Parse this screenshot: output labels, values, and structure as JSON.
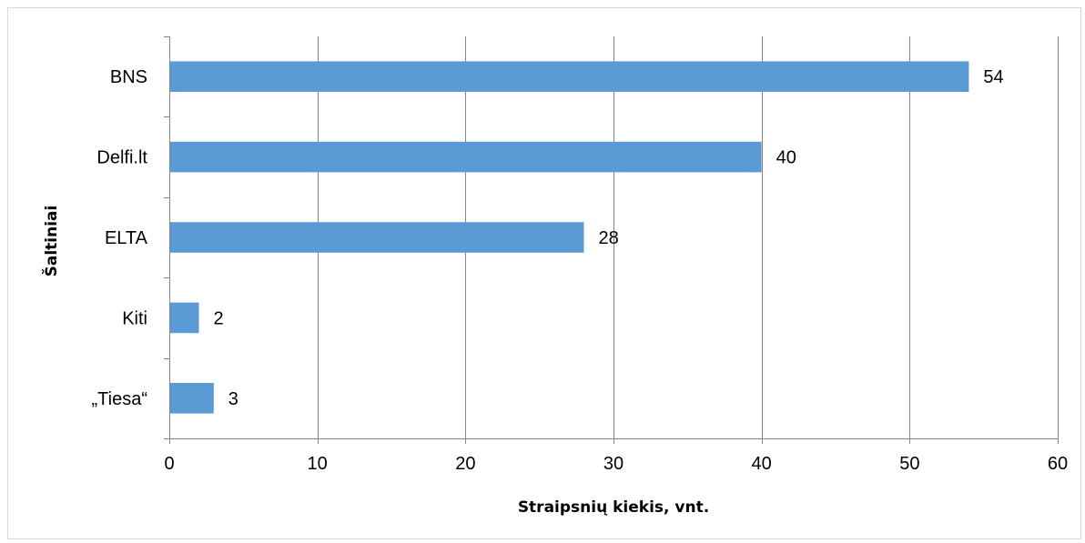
{
  "chart_data": {
    "type": "bar",
    "orientation": "horizontal",
    "categories": [
      "BNS",
      "Delfi.lt",
      "ELTA",
      "Kiti",
      "„Tiesa“"
    ],
    "values": [
      54,
      40,
      28,
      2,
      3
    ],
    "data_labels": [
      "54",
      "40",
      "28",
      "2",
      "3"
    ],
    "title": "",
    "xlabel": "Straipsnių kiekis, vnt.",
    "ylabel": "Šaltiniai",
    "xlim": [
      0,
      60
    ],
    "x_ticks": [
      0,
      10,
      20,
      30,
      40,
      50,
      60
    ],
    "grid": "vertical",
    "legend": "none",
    "bar_color": "#5B9BD5",
    "gridline_color": "#868686",
    "axis_color": "#868686"
  }
}
